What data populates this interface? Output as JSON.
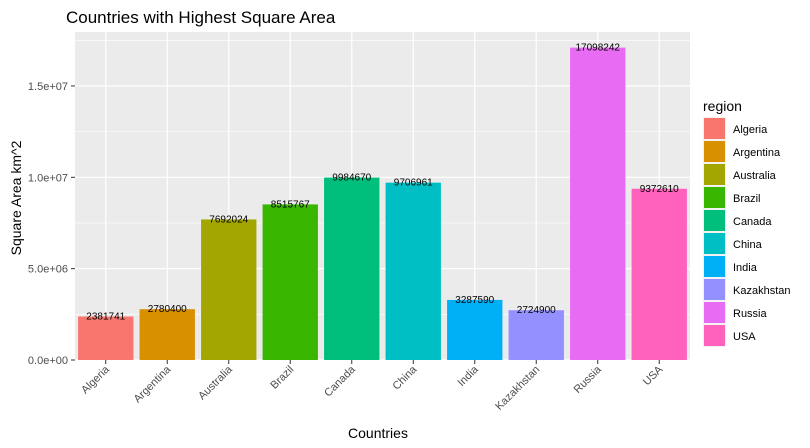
{
  "chart_data": {
    "type": "bar",
    "title": "Countries with Highest Square Area",
    "xlabel": "Countries",
    "ylabel": "Square Area km^2",
    "categories": [
      "Algeria",
      "Argentina",
      "Australia",
      "Brazil",
      "Canada",
      "China",
      "India",
      "Kazakhstan",
      "Russia",
      "USA"
    ],
    "values": [
      2381741,
      2780400,
      7692024,
      8515767,
      9984670,
      9706961,
      3287590,
      2724900,
      17098242,
      9372610
    ],
    "value_labels": [
      "2381741",
      "2780400",
      "7692024",
      "8515767",
      "9984670",
      "9706961",
      "3287590",
      "2724900",
      "17098242",
      "9372610"
    ],
    "colors": [
      "#F8766D",
      "#D89000",
      "#A3A500",
      "#39B600",
      "#00BF7D",
      "#00BFC4",
      "#00B0F6",
      "#9590FF",
      "#E76BF3",
      "#FF62BC"
    ],
    "ylim": [
      0,
      17952654
    ],
    "yticks": [
      0,
      5000000,
      10000000,
      15000000
    ],
    "ytick_labels": [
      "0.0e+00",
      "5.0e+06",
      "1.0e+07",
      "1.5e+07"
    ],
    "grid": true,
    "panel_background": "#EBEBEB",
    "legend": {
      "title": "region",
      "position": "right",
      "entries": [
        "Algeria",
        "Argentina",
        "Australia",
        "Brazil",
        "Canada",
        "China",
        "India",
        "Kazakhstan",
        "Russia",
        "USA"
      ]
    }
  }
}
